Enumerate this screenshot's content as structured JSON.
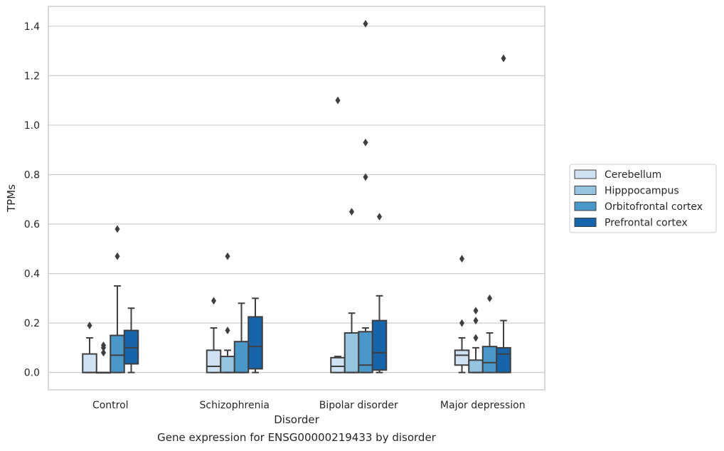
{
  "chart_data": {
    "type": "box",
    "caption": "Gene expression for ENSG00000219433 by disorder",
    "xlabel": "Disorder",
    "ylabel": "TPMs",
    "ylim": [
      -0.07,
      1.48
    ],
    "yticks": [
      0.0,
      0.2,
      0.4,
      0.6,
      0.8,
      1.0,
      1.2,
      1.4
    ],
    "ytick_labels": [
      "0.0",
      "0.2",
      "0.4",
      "0.6",
      "0.8",
      "1.0",
      "1.2",
      "1.4"
    ],
    "grid": "horizontal",
    "legend_position": "right",
    "categories": [
      "Control",
      "Schizophrenia",
      "Bipolar disorder",
      "Major depression"
    ],
    "series": [
      {
        "name": "Cerebellum",
        "color": "#d0e1f2",
        "boxes": [
          {
            "whislo": 0.0,
            "q1": 0.0,
            "med": 0.0,
            "q3": 0.075,
            "whishi": 0.14,
            "fliers": [
              0.19
            ]
          },
          {
            "whislo": 0.0,
            "q1": 0.0,
            "med": 0.025,
            "q3": 0.09,
            "whishi": 0.18,
            "fliers": [
              0.29
            ]
          },
          {
            "whislo": 0.0,
            "q1": 0.0,
            "med": 0.025,
            "q3": 0.06,
            "whishi": 0.065,
            "fliers": [
              1.1
            ]
          },
          {
            "whislo": 0.0,
            "q1": 0.03,
            "med": 0.07,
            "q3": 0.09,
            "whishi": 0.14,
            "fliers": [
              0.2,
              0.46
            ]
          }
        ]
      },
      {
        "name": "Hipppocampus",
        "color": "#94c4df",
        "boxes": [
          {
            "whislo": 0.0,
            "q1": 0.0,
            "med": 0.0,
            "q3": 0.0,
            "whishi": 0.0,
            "fliers": [
              0.08,
              0.1,
              0.11
            ]
          },
          {
            "whislo": 0.0,
            "q1": 0.0,
            "med": 0.0,
            "q3": 0.065,
            "whishi": 0.09,
            "fliers": [
              0.17,
              0.47
            ]
          },
          {
            "whislo": 0.0,
            "q1": 0.0,
            "med": 0.0,
            "q3": 0.16,
            "whishi": 0.24,
            "fliers": [
              0.65
            ]
          },
          {
            "whislo": 0.0,
            "q1": 0.0,
            "med": 0.0,
            "q3": 0.05,
            "whishi": 0.1,
            "fliers": [
              0.14,
              0.21,
              0.25
            ]
          }
        ]
      },
      {
        "name": "Orbitofrontal cortex",
        "color": "#4a98c9",
        "boxes": [
          {
            "whislo": 0.0,
            "q1": 0.0,
            "med": 0.07,
            "q3": 0.15,
            "whishi": 0.35,
            "fliers": [
              0.47,
              0.58
            ]
          },
          {
            "whislo": 0.0,
            "q1": 0.0,
            "med": 0.0,
            "q3": 0.125,
            "whishi": 0.28,
            "fliers": []
          },
          {
            "whislo": 0.0,
            "q1": 0.0,
            "med": 0.03,
            "q3": 0.165,
            "whishi": 0.18,
            "fliers": [
              0.79,
              0.93,
              1.41
            ]
          },
          {
            "whislo": 0.0,
            "q1": 0.0,
            "med": 0.04,
            "q3": 0.105,
            "whishi": 0.16,
            "fliers": [
              0.3
            ]
          }
        ]
      },
      {
        "name": "Prefrontal cortex",
        "color": "#1764ab",
        "boxes": [
          {
            "whislo": 0.0,
            "q1": 0.035,
            "med": 0.1,
            "q3": 0.17,
            "whishi": 0.26,
            "fliers": []
          },
          {
            "whislo": 0.0,
            "q1": 0.015,
            "med": 0.105,
            "q3": 0.225,
            "whishi": 0.3,
            "fliers": []
          },
          {
            "whislo": 0.0,
            "q1": 0.01,
            "med": 0.08,
            "q3": 0.21,
            "whishi": 0.31,
            "fliers": [
              0.63
            ]
          },
          {
            "whislo": 0.0,
            "q1": 0.0,
            "med": 0.075,
            "q3": 0.1,
            "whishi": 0.21,
            "fliers": [
              1.27
            ]
          }
        ]
      }
    ]
  }
}
